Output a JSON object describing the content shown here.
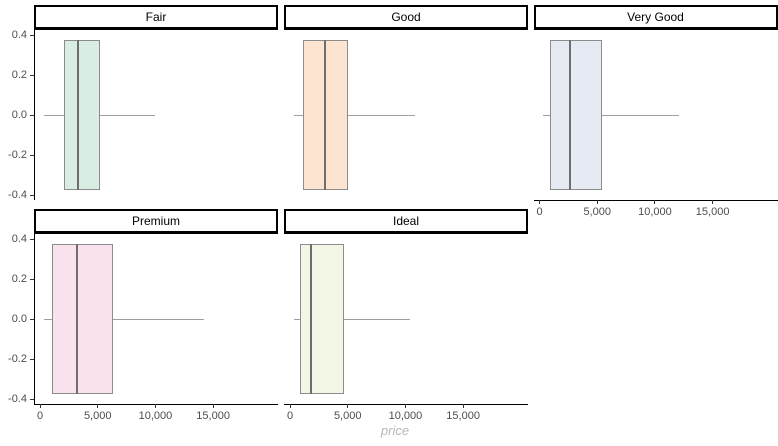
{
  "chart_data": {
    "type": "boxplot",
    "orientation": "horizontal",
    "facet_by": "cut",
    "xlabel": "price",
    "x_domain": [
      -520,
      20620
    ],
    "x_ticks": [
      0,
      5000,
      10000,
      15000
    ],
    "x_tick_labels": [
      "0",
      "5,000",
      "10,000",
      "15,000"
    ],
    "y_domain": [
      -0.425,
      0.425
    ],
    "y_ticks": [
      0.4,
      0.2,
      0.0,
      -0.2,
      -0.4
    ],
    "y_tick_labels": [
      "0.4",
      "0.2",
      "0.0",
      "-0.2",
      "-0.4"
    ],
    "box_y_center": 0.0,
    "box_half_height": 0.375,
    "grid": "off",
    "facets": [
      {
        "label": "Fair",
        "fill": "#d9ede2",
        "whisker_low": 337,
        "q1": 2050,
        "median": 3282,
        "q3": 5206,
        "whisker_high": 9932
      },
      {
        "label": "Good",
        "fill": "#fde4d1",
        "whisker_low": 327,
        "q1": 1145,
        "median": 3050,
        "q3": 5028,
        "whisker_high": 10840
      },
      {
        "label": "Very Good",
        "fill": "#e5eaf3",
        "whisker_low": 336,
        "q1": 912,
        "median": 2648,
        "q3": 5373,
        "whisker_high": 12050
      },
      {
        "label": "Premium",
        "fill": "#f9e2ee",
        "whisker_low": 326,
        "q1": 1046,
        "median": 3185,
        "q3": 6296,
        "whisker_high": 14170
      },
      {
        "label": "Ideal",
        "fill": "#f1f7e4",
        "whisker_low": 326,
        "q1": 878,
        "median": 1810,
        "q3": 4679,
        "whisker_high": 10370
      }
    ]
  },
  "colors": {
    "background": "#ffffff",
    "strip_background": "#ffffff",
    "strip_border": "#000000",
    "axis_line": "#000000",
    "tick_mark": "#333333",
    "axis_text": "#4d4d4d",
    "axis_title_text": "#b8b8b8",
    "box_border": "#8c8c8c",
    "median_line": "#6e6e6e",
    "whisker_line": "#9e9e9e"
  }
}
